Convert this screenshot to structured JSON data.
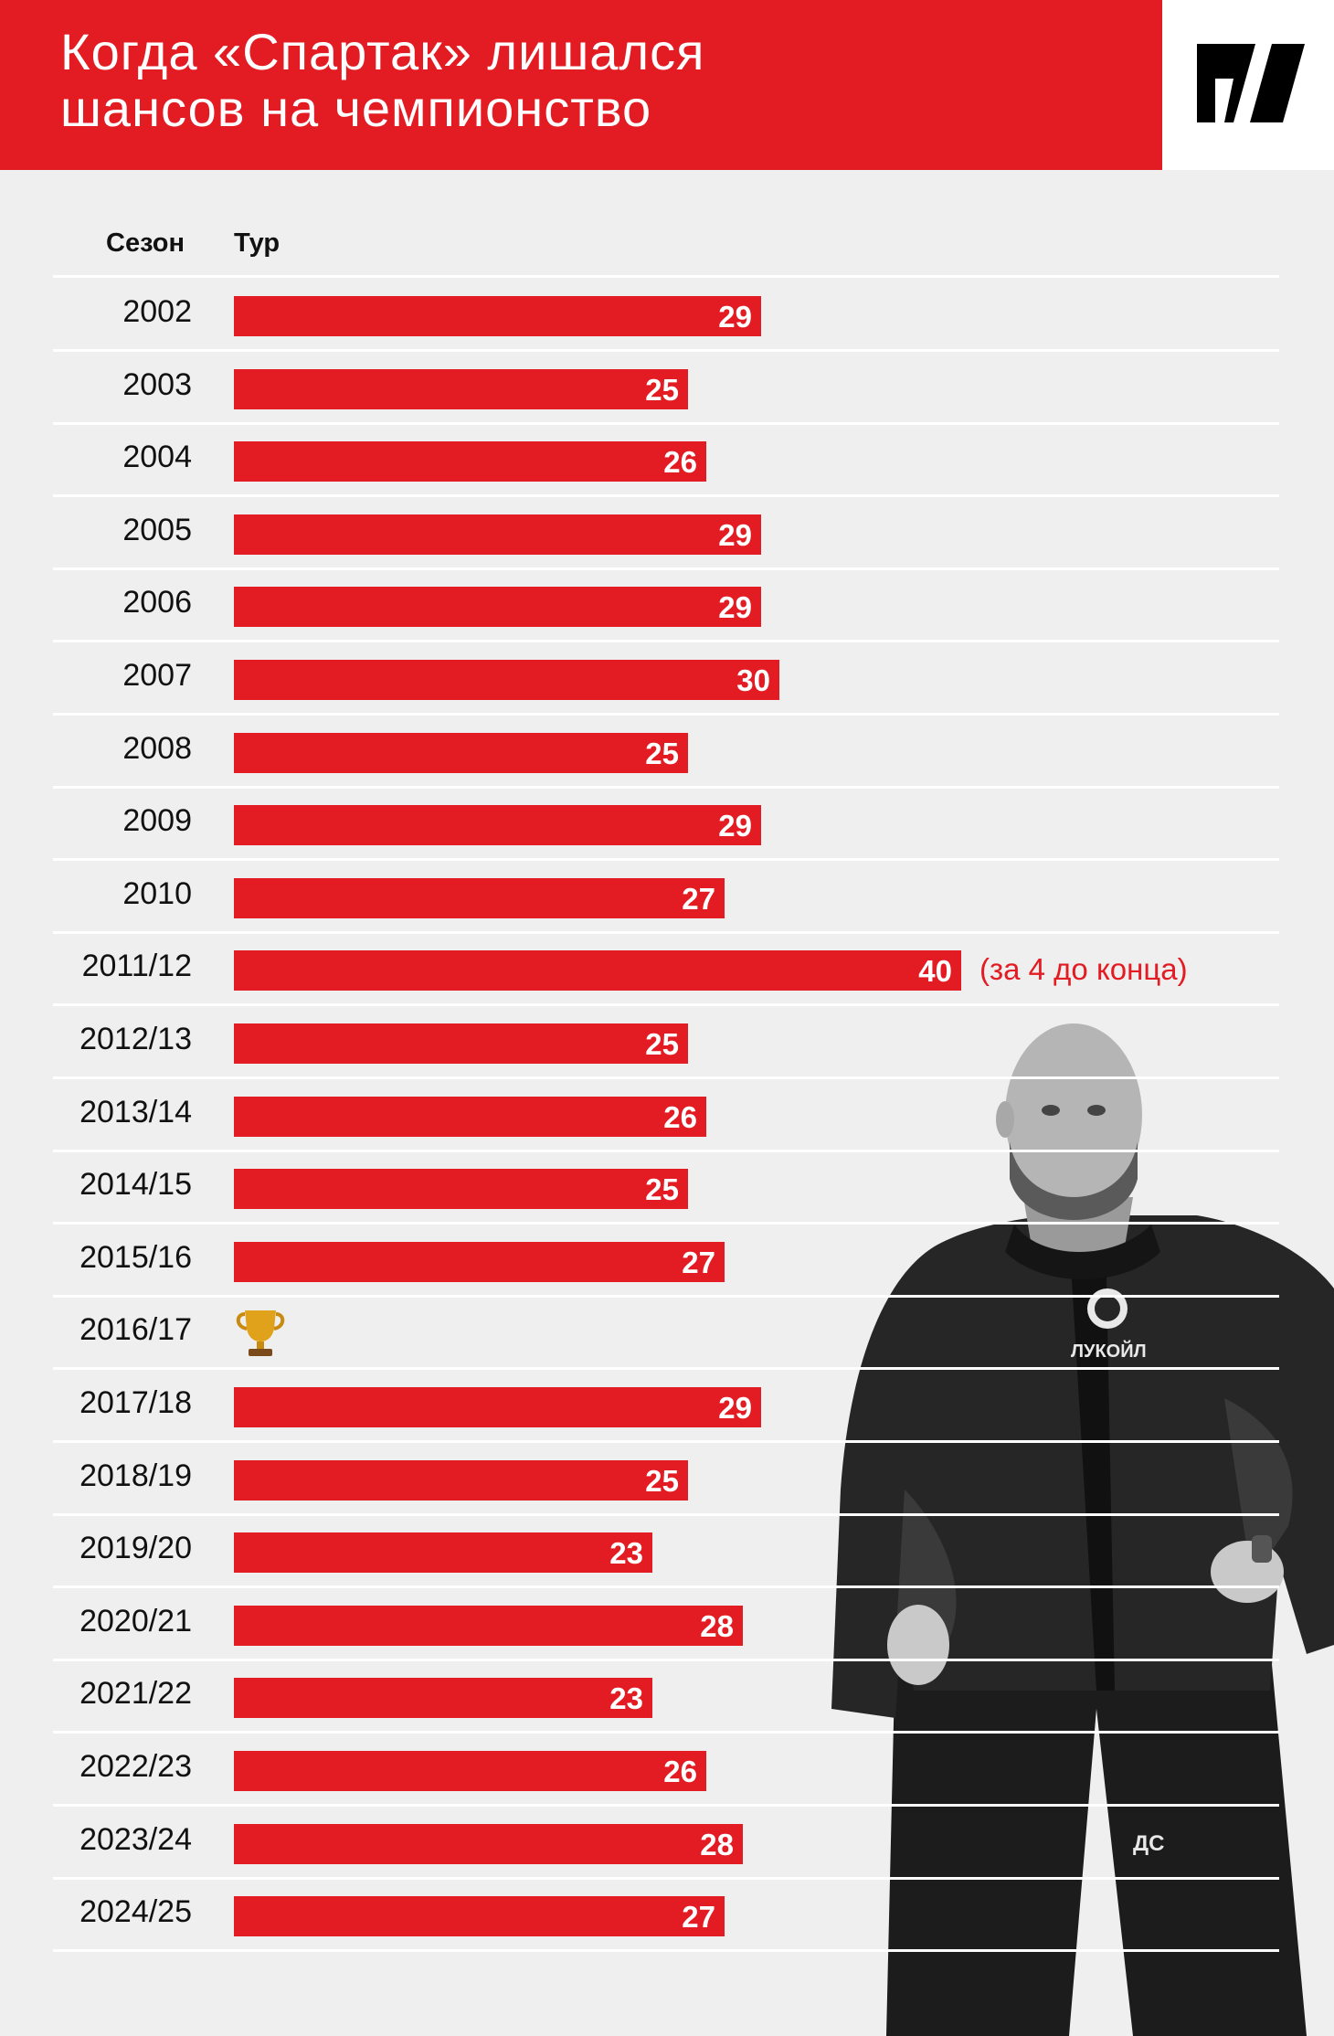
{
  "header": {
    "title_line1": "Когда «Спартак» лишался",
    "title_line2": "шансов на чемпионство",
    "accent_color": "#e31c23",
    "logo_icon": "sports-media-logo-icon"
  },
  "photo": {
    "subject": "coach-photo",
    "shirt_text": "ЛУКОЙЛ",
    "pants_text": "ДС"
  },
  "chart_data": {
    "type": "bar",
    "orientation": "horizontal",
    "column_headers": [
      "Сезон",
      "Тур"
    ],
    "categories": [
      "2002",
      "2003",
      "2004",
      "2005",
      "2006",
      "2007",
      "2008",
      "2009",
      "2010",
      "2011/12",
      "2012/13",
      "2013/14",
      "2014/15",
      "2015/16",
      "2016/17",
      "2017/18",
      "2018/19",
      "2019/20",
      "2020/21",
      "2021/22",
      "2022/23",
      "2023/24",
      "2024/25"
    ],
    "values": [
      29,
      25,
      26,
      29,
      29,
      30,
      25,
      29,
      27,
      40,
      25,
      26,
      25,
      27,
      null,
      29,
      25,
      23,
      28,
      23,
      26,
      28,
      27
    ],
    "annotations": [
      {
        "category": "2011/12",
        "text": "(за 4 до конца)"
      },
      {
        "category": "2016/17",
        "icon": "trophy-icon"
      }
    ],
    "bar_color": "#e31c23"
  }
}
